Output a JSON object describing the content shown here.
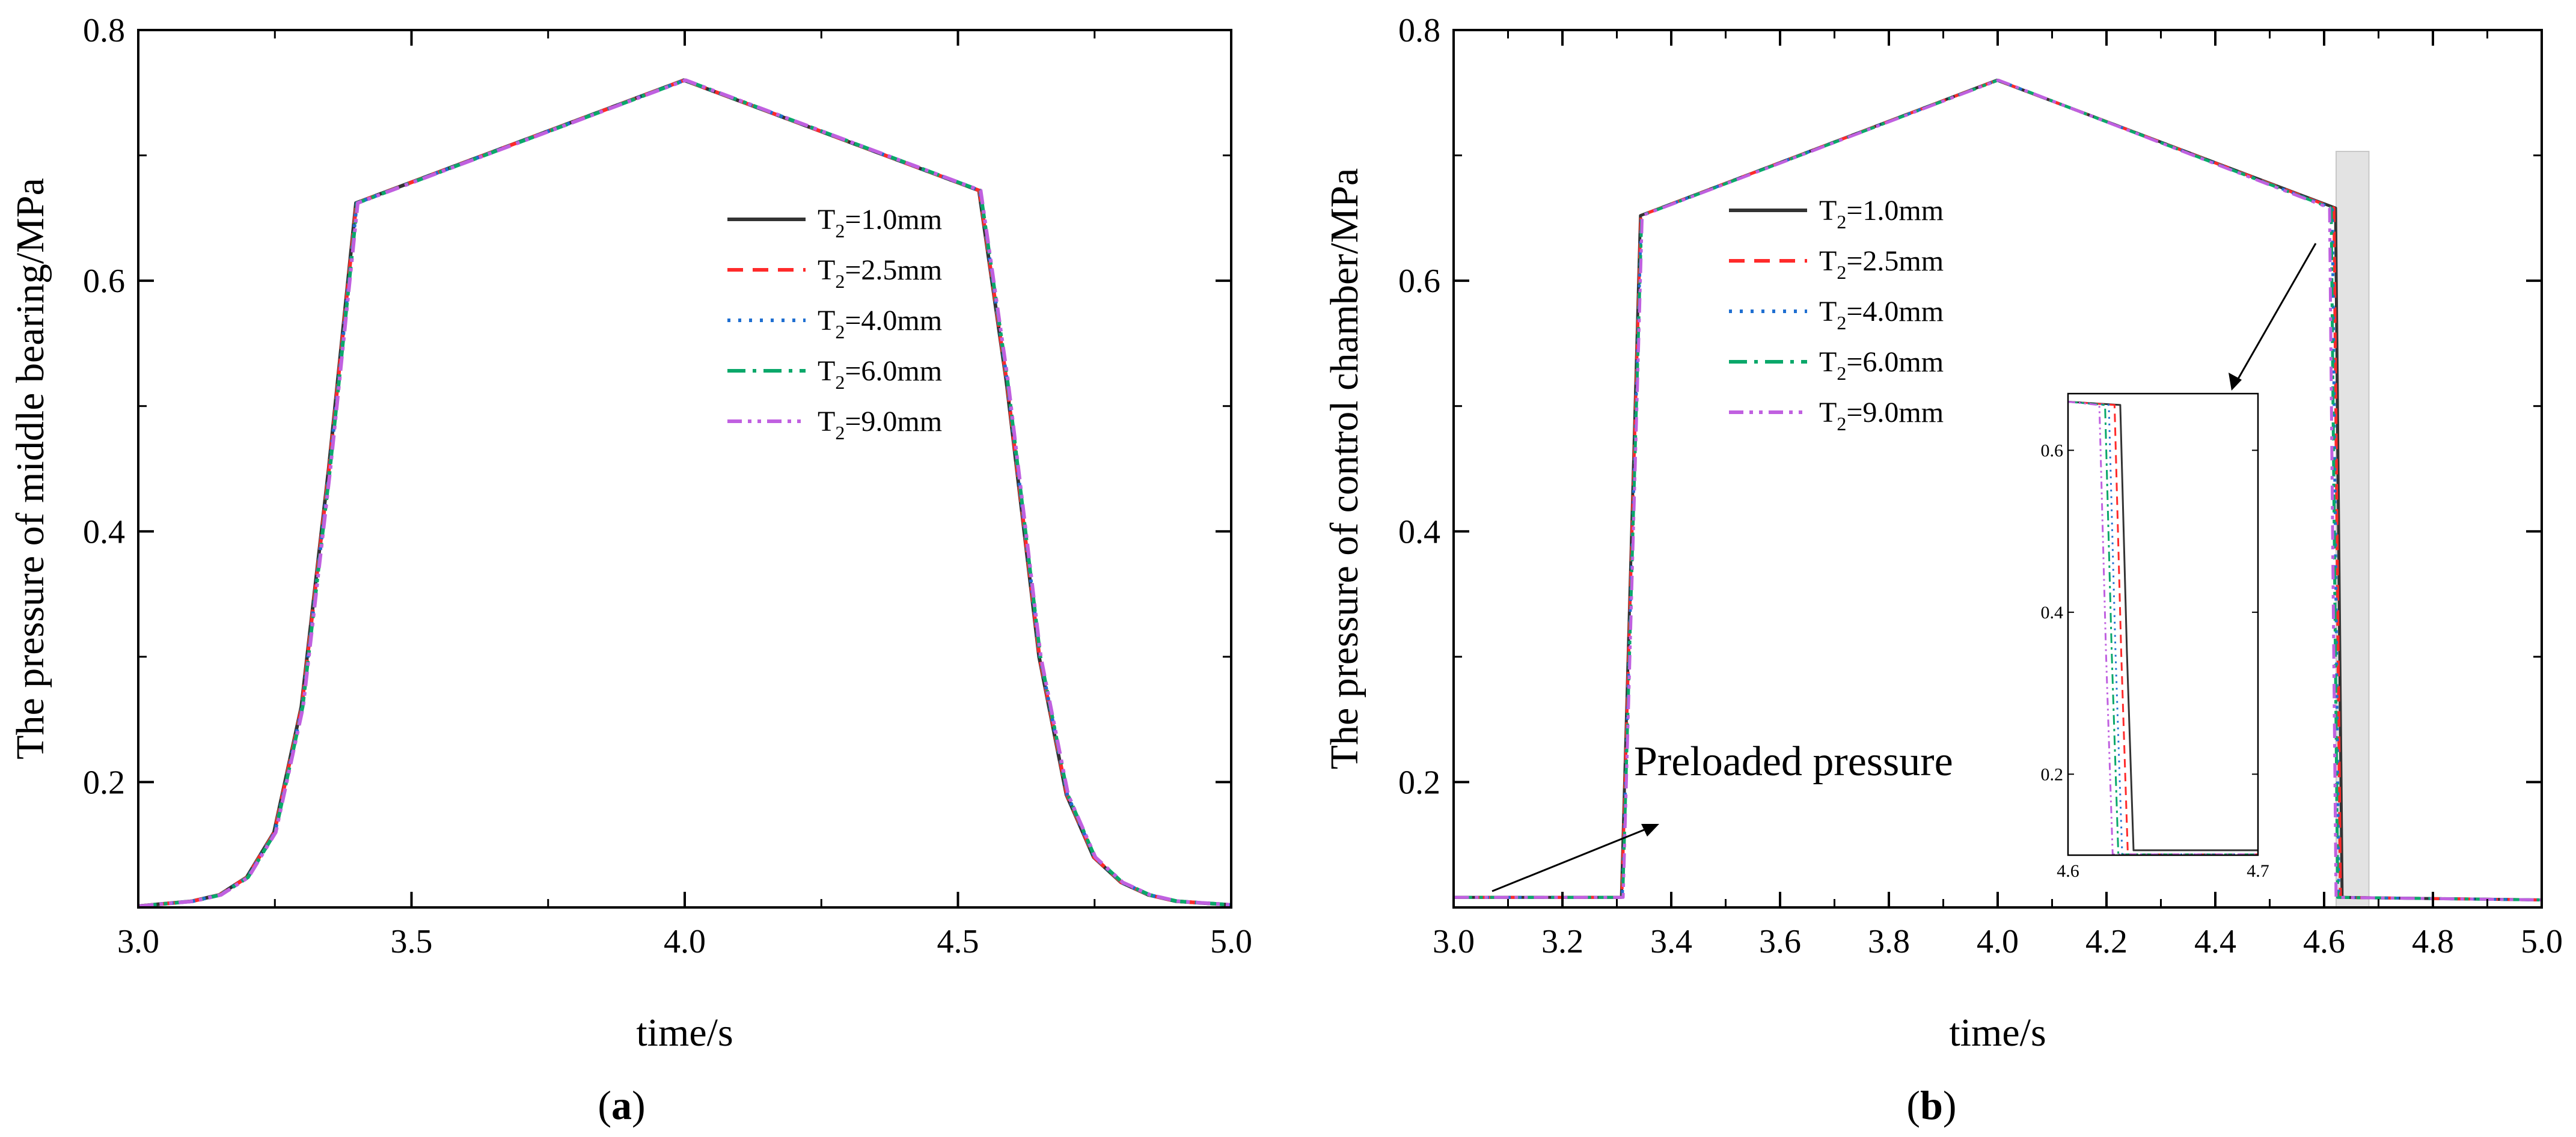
{
  "chart_data": [
    {
      "id": "a",
      "type": "line",
      "panel_label_open": "(",
      "panel_label_letter": "a",
      "panel_label_close": ")",
      "xlabel": "time/s",
      "ylabel": "The pressure of middle bearing/MPa",
      "xlim": [
        3.0,
        5.0
      ],
      "ylim": [
        0.1,
        0.8
      ],
      "x_ticks": [
        3.0,
        3.5,
        4.0,
        4.5,
        5.0
      ],
      "x_tick_labels": [
        "3.0",
        "3.5",
        "4.0",
        "4.5",
        "5.0"
      ],
      "y_ticks": [
        0.2,
        0.4,
        0.6,
        0.8
      ],
      "y_tick_labels": [
        "0.2",
        "0.4",
        "0.6",
        "0.8"
      ],
      "legend_position": "upper-right",
      "series": [
        {
          "name": "T2=1.0mm",
          "label_main": "T",
          "label_sub": "2",
          "label_rest": "=1.0mm",
          "color": "#333333",
          "dash": "solid"
        },
        {
          "name": "T2=2.5mm",
          "label_main": "T",
          "label_sub": "2",
          "label_rest": "=2.5mm",
          "color": "#ff2a2a",
          "dash": "dash"
        },
        {
          "name": "T2=4.0mm",
          "label_main": "T",
          "label_sub": "2",
          "label_rest": "=4.0mm",
          "color": "#1f6fd1",
          "dash": "dot"
        },
        {
          "name": "T2=6.0mm",
          "label_main": "T",
          "label_sub": "2",
          "label_rest": "=6.0mm",
          "color": "#0aa86a",
          "dash": "dashdot"
        },
        {
          "name": "T2=9.0mm",
          "label_main": "T",
          "label_sub": "2",
          "label_rest": "=9.0mm",
          "color": "#c060e0",
          "dash": "dashdotdot"
        }
      ],
      "curve": {
        "x": [
          3.0,
          3.1,
          3.15,
          3.2,
          3.25,
          3.3,
          3.35,
          3.4,
          4.0,
          4.54,
          4.59,
          4.65,
          4.7,
          4.75,
          4.8,
          4.85,
          4.9,
          5.0
        ],
        "y": [
          0.101,
          0.105,
          0.11,
          0.124,
          0.16,
          0.26,
          0.45,
          0.662,
          0.76,
          0.672,
          0.52,
          0.3,
          0.19,
          0.14,
          0.12,
          0.11,
          0.105,
          0.102
        ]
      }
    },
    {
      "id": "b",
      "type": "line",
      "panel_label_open": "(",
      "panel_label_letter": "b",
      "panel_label_close": ")",
      "xlabel": "time/s",
      "ylabel": "The pressure of control chamber/MPa",
      "xlim": [
        3.0,
        5.0
      ],
      "ylim": [
        0.1,
        0.8
      ],
      "x_ticks": [
        3.0,
        3.2,
        3.4,
        3.6,
        3.8,
        4.0,
        4.2,
        4.4,
        4.6,
        4.8,
        5.0
      ],
      "x_tick_labels": [
        "3.0",
        "3.2",
        "3.4",
        "3.6",
        "3.8",
        "4.0",
        "4.2",
        "4.4",
        "4.6",
        "4.8",
        "5.0"
      ],
      "y_ticks": [
        0.2,
        0.4,
        0.6,
        0.8
      ],
      "y_tick_labels": [
        "0.2",
        "0.4",
        "0.6",
        "0.8"
      ],
      "legend_position": "upper-center",
      "annotation": "Preloaded pressure",
      "highlight_x": [
        4.6,
        4.7
      ],
      "series": [
        {
          "name": "T2=1.0mm",
          "label_main": "T",
          "label_sub": "2",
          "label_rest": "=1.0mm",
          "color": "#333333",
          "dash": "solid",
          "drop_t": 4.629
        },
        {
          "name": "T2=2.5mm",
          "label_main": "T",
          "label_sub": "2",
          "label_rest": "=2.5mm",
          "color": "#ff2a2a",
          "dash": "dash",
          "drop_t": 4.626
        },
        {
          "name": "T2=4.0mm",
          "label_main": "T",
          "label_sub": "2",
          "label_rest": "=4.0mm",
          "color": "#1f6fd1",
          "dash": "dot",
          "drop_t": 4.623
        },
        {
          "name": "T2=6.0mm",
          "label_main": "T",
          "label_sub": "2",
          "label_rest": "=6.0mm",
          "color": "#0aa86a",
          "dash": "dashdot",
          "drop_t": 4.621
        },
        {
          "name": "T2=9.0mm",
          "label_main": "T",
          "label_sub": "2",
          "label_rest": "=9.0mm",
          "color": "#c060e0",
          "dash": "dashdotdot",
          "drop_t": 4.618
        }
      ],
      "curve": {
        "x": [
          3.0,
          3.31,
          3.345,
          4.0,
          4.62,
          4.635,
          5.0
        ],
        "y": [
          0.108,
          0.108,
          0.652,
          0.76,
          0.658,
          0.108,
          0.106
        ]
      },
      "inset": {
        "xlim": [
          4.6,
          4.7
        ],
        "ylim": [
          0.1,
          0.67
        ],
        "x_tick_labels": [
          "4.6",
          "4.7"
        ],
        "y_ticks": [
          0.2,
          0.4,
          0.6
        ],
        "y_tick_labels": [
          "0.2",
          "0.4",
          "0.6"
        ]
      }
    }
  ]
}
